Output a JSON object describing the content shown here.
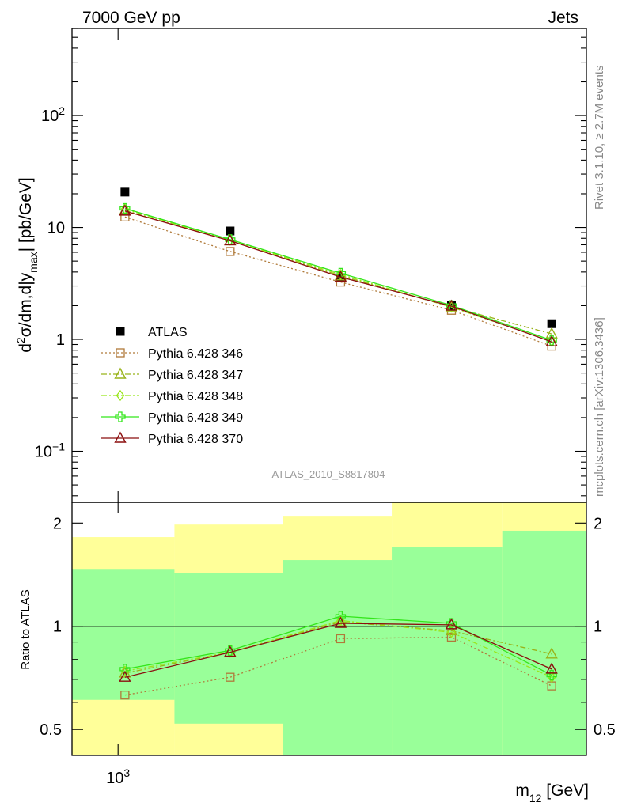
{
  "header": {
    "left": "7000 GeV pp",
    "right": "Jets"
  },
  "side_labels": {
    "rivet": "Rivet 3.1.10, ≥ 2.7M events",
    "mcplots": "mcplots.cern.ch [arXiv:1306.3436]"
  },
  "analysis_id": "ATLAS_2010_S8817804",
  "colors": {
    "atlas": "#000000",
    "p346": "#b07a3a",
    "p347": "#99b31a",
    "p348": "#99e61a",
    "p349": "#33e61a",
    "p370": "#8b0f0f",
    "band_inner": "#99ff99",
    "band_outer": "#ffff99"
  },
  "chart_data": [
    {
      "type": "line",
      "panel": "main",
      "ylabel_parts": {
        "d": "d",
        "sq": "2",
        "rest": "σ/dm,d|y",
        "sub": "max",
        "end": "| [pb/GeV]"
      },
      "xlabel": "",
      "yscale": "log",
      "xscale": "log",
      "ylim": [
        0.035,
        600
      ],
      "xlim": [
        905,
        2760
      ],
      "y_tick_labels": [
        {
          "value": 100,
          "base": "10",
          "exp": "2"
        },
        {
          "value": 10,
          "base": "10",
          "exp": ""
        },
        {
          "value": 1,
          "base": "1",
          "exp": ""
        },
        {
          "value": 0.1,
          "base": "10",
          "exp": "−1"
        }
      ],
      "legend_position": "bottom-left",
      "series": [
        {
          "name": "ATLAS",
          "key": "atlas",
          "marker": "filled-square",
          "line": "none",
          "x": [
            1015,
            1275,
            1620,
            2060,
            2560
          ],
          "y": [
            20.7,
            9.3,
            3.55,
            2.0,
            1.38
          ]
        },
        {
          "name": "Pythia 6.428 346",
          "key": "p346",
          "marker": "open-square",
          "line": "dotted",
          "x": [
            1015,
            1275,
            1620,
            2060,
            2560
          ],
          "y": [
            12.4,
            6.1,
            3.25,
            1.82,
            0.87
          ]
        },
        {
          "name": "Pythia 6.428 347",
          "key": "p347",
          "marker": "open-triangle",
          "line": "dashdot",
          "x": [
            1015,
            1275,
            1620,
            2060,
            2560
          ],
          "y": [
            14.2,
            7.6,
            3.7,
            1.95,
            1.12
          ]
        },
        {
          "name": "Pythia 6.428 348",
          "key": "p348",
          "marker": "open-diamond",
          "line": "dashdot",
          "x": [
            1015,
            1275,
            1620,
            2060,
            2560
          ],
          "y": [
            14.6,
            7.7,
            3.8,
            1.94,
            0.96
          ]
        },
        {
          "name": "Pythia 6.428 349",
          "key": "p349",
          "marker": "open-cross",
          "line": "solid",
          "x": [
            1015,
            1275,
            1620,
            2060,
            2560
          ],
          "y": [
            14.8,
            7.8,
            3.9,
            2.01,
            0.98
          ]
        },
        {
          "name": "Pythia 6.428 370",
          "key": "p370",
          "marker": "open-triangle",
          "line": "solid",
          "x": [
            1015,
            1275,
            1620,
            2060,
            2560
          ],
          "y": [
            14.0,
            7.6,
            3.6,
            1.98,
            0.95
          ]
        }
      ]
    },
    {
      "type": "line",
      "panel": "ratio",
      "ylabel": "Ratio to ATLAS",
      "xlabel_parts": {
        "m": "m",
        "sub": "12",
        "rest": " [GeV]"
      },
      "xscale": "log",
      "yscale": "log",
      "ylim": [
        0.42,
        2.3
      ],
      "xlim": [
        905,
        2760
      ],
      "y_ticks": [
        0.5,
        1,
        2
      ],
      "y_tick_labels": [
        "0.5",
        "1",
        "2"
      ],
      "x_tick_labels": [
        {
          "value": 1000,
          "base": "10",
          "exp": "3"
        }
      ],
      "reference_line": 1,
      "bands": [
        {
          "x_low": 905,
          "x_high": 1130,
          "inner": [
            0.61,
            1.47
          ],
          "outer": [
            0.42,
            1.82
          ]
        },
        {
          "x_low": 1130,
          "x_high": 1430,
          "inner": [
            0.52,
            1.43
          ],
          "outer": [
            0.42,
            1.98
          ]
        },
        {
          "x_low": 1430,
          "x_high": 1810,
          "inner": [
            0.42,
            1.56
          ],
          "outer": [
            0.42,
            2.1
          ]
        },
        {
          "x_low": 1810,
          "x_high": 2300,
          "inner": [
            0.42,
            1.7
          ],
          "outer": [
            0.42,
            2.3
          ]
        },
        {
          "x_low": 2300,
          "x_high": 2760,
          "inner": [
            0.42,
            1.9
          ],
          "outer": [
            0.42,
            2.3
          ]
        }
      ],
      "series": [
        {
          "name": "Pythia 6.428 346",
          "key": "p346",
          "marker": "open-square",
          "line": "dotted",
          "x": [
            1015,
            1275,
            1620,
            2060,
            2560
          ],
          "y": [
            0.63,
            0.71,
            0.92,
            0.93,
            0.67
          ]
        },
        {
          "name": "Pythia 6.428 347",
          "key": "p347",
          "marker": "open-triangle",
          "line": "dashdot",
          "x": [
            1015,
            1275,
            1620,
            2060,
            2560
          ],
          "y": [
            0.73,
            0.84,
            1.03,
            0.97,
            0.83
          ]
        },
        {
          "name": "Pythia 6.428 348",
          "key": "p348",
          "marker": "open-diamond",
          "line": "dashdot",
          "x": [
            1015,
            1275,
            1620,
            2060,
            2560
          ],
          "y": [
            0.74,
            0.84,
            1.04,
            0.96,
            0.71
          ]
        },
        {
          "name": "Pythia 6.428 349",
          "key": "p349",
          "marker": "open-cross",
          "line": "solid",
          "x": [
            1015,
            1275,
            1620,
            2060,
            2560
          ],
          "y": [
            0.75,
            0.85,
            1.07,
            1.02,
            0.72
          ]
        },
        {
          "name": "Pythia 6.428 370",
          "key": "p370",
          "marker": "open-triangle",
          "line": "solid",
          "x": [
            1015,
            1275,
            1620,
            2060,
            2560
          ],
          "y": [
            0.71,
            0.84,
            1.02,
            1.01,
            0.75
          ]
        }
      ]
    }
  ]
}
